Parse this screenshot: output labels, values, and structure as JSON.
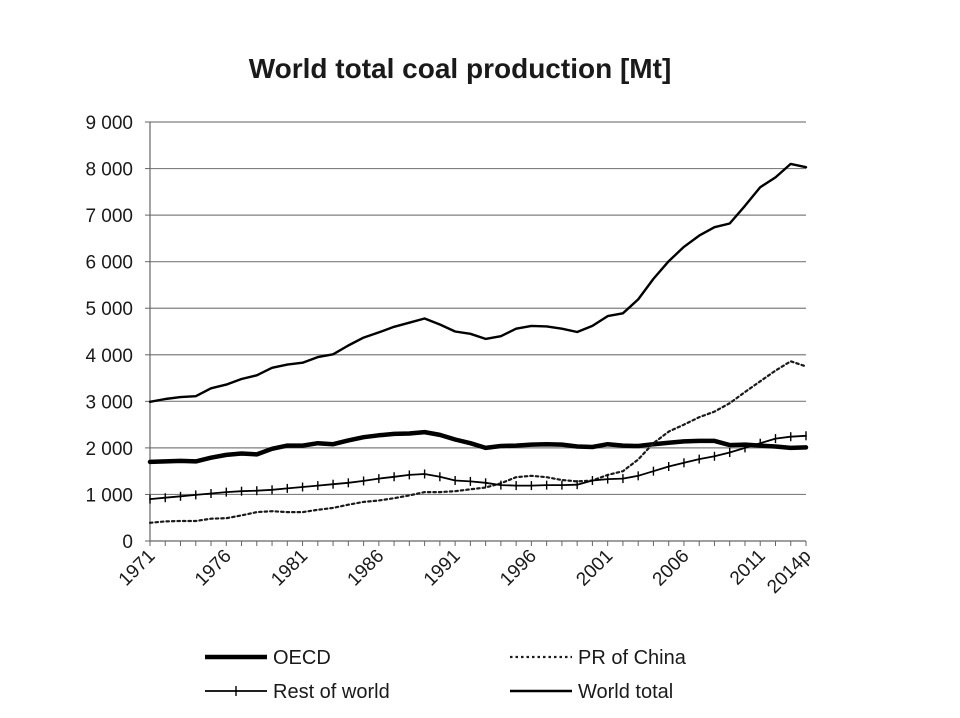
{
  "chart_data": {
    "type": "line",
    "title": "World total coal production [Mt]",
    "xlabel": "",
    "ylabel": "",
    "ylim": [
      0,
      9000
    ],
    "yticks": [
      0,
      1000,
      2000,
      3000,
      4000,
      5000,
      6000,
      7000,
      8000,
      9000
    ],
    "ytick_labels": [
      "0",
      "1 000",
      "2 000",
      "3 000",
      "4 000",
      "5 000",
      "6 000",
      "7 000",
      "8 000",
      "9 000"
    ],
    "x": [
      "1971",
      "1972",
      "1973",
      "1974",
      "1975",
      "1976",
      "1977",
      "1978",
      "1979",
      "1980",
      "1981",
      "1982",
      "1983",
      "1984",
      "1985",
      "1986",
      "1987",
      "1988",
      "1989",
      "1990",
      "1991",
      "1992",
      "1993",
      "1994",
      "1995",
      "1996",
      "1997",
      "1998",
      "1999",
      "2000",
      "2001",
      "2002",
      "2003",
      "2004",
      "2005",
      "2006",
      "2007",
      "2008",
      "2009",
      "2010",
      "2011",
      "2012",
      "2013",
      "2014p"
    ],
    "xtick_labels": [
      "1971",
      "1976",
      "1981",
      "1986",
      "1991",
      "1996",
      "2001",
      "2006",
      "2011",
      "2014p"
    ],
    "grid": "horizontal",
    "legend_position": "bottom",
    "series": [
      {
        "name": "OECD",
        "style": "thick-solid",
        "color": "#000000",
        "values": [
          1700,
          1710,
          1720,
          1710,
          1790,
          1850,
          1880,
          1860,
          1980,
          2050,
          2050,
          2100,
          2080,
          2160,
          2230,
          2270,
          2300,
          2310,
          2340,
          2280,
          2180,
          2100,
          2000,
          2040,
          2050,
          2070,
          2080,
          2070,
          2030,
          2020,
          2080,
          2050,
          2040,
          2080,
          2110,
          2140,
          2150,
          2150,
          2060,
          2070,
          2050,
          2030,
          2000,
          2010
        ]
      },
      {
        "name": "PR of China",
        "style": "dotted",
        "color": "#1a1a1a",
        "values": [
          390,
          420,
          430,
          430,
          480,
          490,
          550,
          620,
          640,
          620,
          620,
          670,
          710,
          780,
          840,
          870,
          920,
          980,
          1050,
          1050,
          1070,
          1110,
          1150,
          1240,
          1370,
          1400,
          1370,
          1310,
          1280,
          1300,
          1420,
          1500,
          1750,
          2100,
          2350,
          2500,
          2660,
          2780,
          2960,
          3200,
          3430,
          3660,
          3860,
          3750
        ]
      },
      {
        "name": "Rest of world",
        "style": "solid-plus",
        "color": "#000000",
        "values": [
          900,
          930,
          960,
          990,
          1020,
          1050,
          1070,
          1080,
          1100,
          1130,
          1160,
          1190,
          1220,
          1250,
          1290,
          1340,
          1380,
          1420,
          1440,
          1380,
          1300,
          1280,
          1250,
          1200,
          1190,
          1190,
          1200,
          1200,
          1210,
          1300,
          1330,
          1340,
          1400,
          1500,
          1600,
          1680,
          1760,
          1820,
          1900,
          2000,
          2100,
          2200,
          2240,
          2260
        ]
      },
      {
        "name": "World total",
        "style": "solid",
        "color": "#000000",
        "values": [
          2990,
          3050,
          3090,
          3110,
          3280,
          3360,
          3480,
          3560,
          3720,
          3790,
          3830,
          3950,
          4010,
          4200,
          4370,
          4480,
          4600,
          4690,
          4780,
          4650,
          4500,
          4450,
          4340,
          4400,
          4560,
          4620,
          4610,
          4560,
          4490,
          4620,
          4830,
          4890,
          5190,
          5630,
          6010,
          6320,
          6560,
          6740,
          6820,
          7200,
          7600,
          7810,
          8100,
          8030
        ]
      }
    ]
  }
}
